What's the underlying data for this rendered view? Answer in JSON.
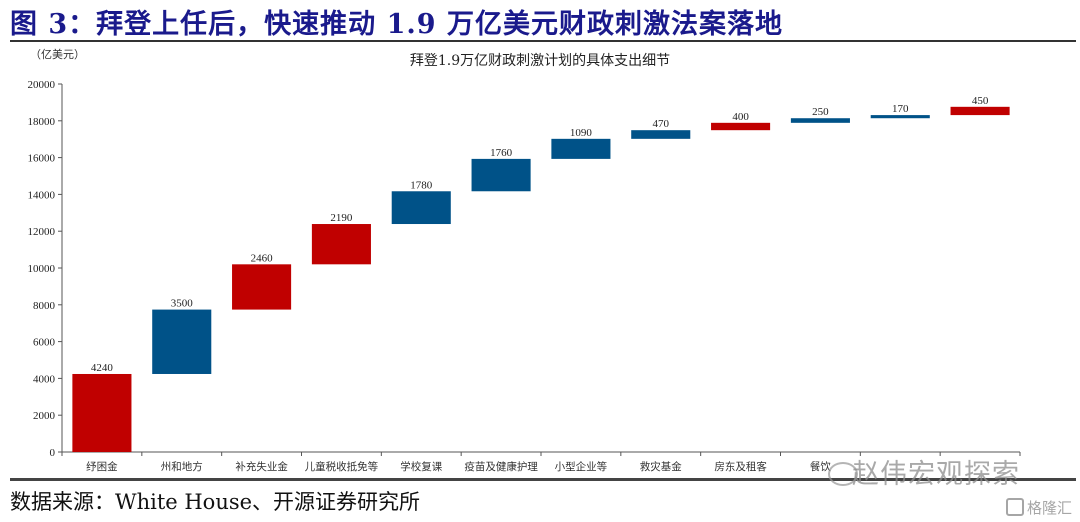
{
  "figure": {
    "title": "图 3：拜登上任后，快速推动 1.9 万亿美元财政刺激法案落地",
    "source": "数据来源：White House、开源证券研究所",
    "watermark": "赵伟宏观探索",
    "watermark2": "格隆汇"
  },
  "colors": {
    "title": "#1a1a8c",
    "red": "#c00000",
    "blue": "#005288"
  },
  "chart_data": {
    "type": "bar",
    "subtype": "waterfall",
    "title": "拜登1.9万亿财政刺激计划的具体支出细节",
    "ylabel": "（亿美元）",
    "xlabel": "",
    "ylim": [
      0,
      20000
    ],
    "yticks": [
      0,
      2000,
      4000,
      6000,
      8000,
      10000,
      12000,
      14000,
      16000,
      18000,
      20000
    ],
    "grid": false,
    "categories": [
      "纾困金",
      "州和地方",
      "补充失业金",
      "儿童税收抵免等",
      "学校复课",
      "疫苗及健康护理",
      "小型企业等",
      "救灾基金",
      "房东及租客",
      "餐饮",
      "",
      ""
    ],
    "values": [
      4240,
      3500,
      2460,
      2190,
      1780,
      1760,
      1090,
      470,
      400,
      250,
      170,
      450
    ],
    "bases": [
      0,
      4240,
      7740,
      10200,
      12390,
      14170,
      15930,
      17020,
      17490,
      17890,
      18140,
      18310
    ],
    "bar_colors": [
      "red",
      "blue",
      "red",
      "red",
      "blue",
      "blue",
      "blue",
      "blue",
      "red",
      "blue",
      "blue",
      "red"
    ]
  }
}
